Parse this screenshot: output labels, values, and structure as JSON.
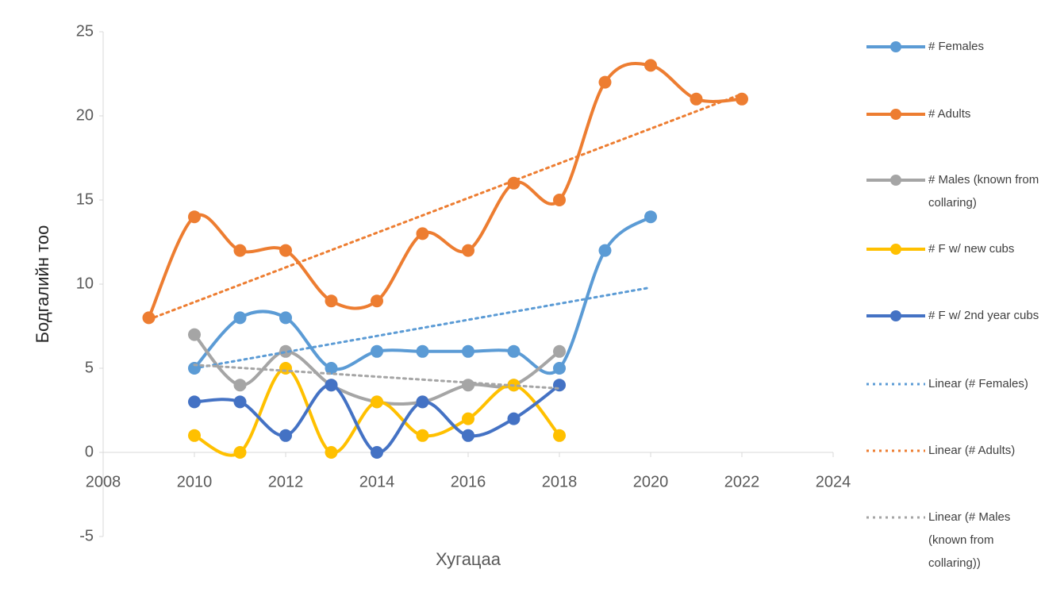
{
  "chart_data": {
    "type": "line",
    "smooth": true,
    "x_label": "Хугацаа",
    "y_label": "Бодгалийн тоо",
    "xlim": [
      2008,
      2024
    ],
    "xticks": [
      2008,
      2010,
      2012,
      2014,
      2016,
      2018,
      2020,
      2022,
      2024
    ],
    "ylim": [
      -5,
      25
    ],
    "yticks": [
      -5,
      0,
      5,
      10,
      15,
      20,
      25
    ],
    "series": [
      {
        "name": "# Females",
        "color": "#5b9bd5",
        "style": "solid",
        "x": [
          2010,
          2011,
          2012,
          2013,
          2014,
          2015,
          2016,
          2017,
          2018,
          2019,
          2020
        ],
        "values": [
          5,
          8,
          8,
          5,
          6,
          6,
          6,
          6,
          5,
          12,
          14
        ]
      },
      {
        "name": "# Adults",
        "color": "#ed7d31",
        "style": "solid",
        "x": [
          2009,
          2010,
          2011,
          2012,
          2013,
          2014,
          2015,
          2016,
          2017,
          2018,
          2019,
          2020,
          2021,
          2022
        ],
        "values": [
          8,
          14,
          12,
          12,
          9,
          9,
          13,
          12,
          16,
          15,
          22,
          23,
          21,
          21
        ]
      },
      {
        "name": "# Males (known from collaring)",
        "color": "#a5a5a5",
        "style": "solid",
        "x": [
          2010,
          2011,
          2012,
          2013,
          2014,
          2015,
          2016,
          2017,
          2018
        ],
        "values": [
          7,
          4,
          6,
          4,
          3,
          3,
          4,
          4,
          6
        ]
      },
      {
        "name": "# F w/ new cubs",
        "color": "#ffc000",
        "style": "solid",
        "x": [
          2010,
          2011,
          2012,
          2013,
          2014,
          2015,
          2016,
          2017,
          2018
        ],
        "values": [
          1,
          0,
          5,
          0,
          3,
          1,
          2,
          4,
          1
        ]
      },
      {
        "name": "# F w/ 2nd year cubs",
        "color": "#4472c4",
        "style": "solid",
        "x": [
          2010,
          2011,
          2012,
          2013,
          2014,
          2015,
          2016,
          2017,
          2018
        ],
        "values": [
          3,
          3,
          1,
          4,
          0,
          3,
          1,
          2,
          4
        ]
      },
      {
        "name": "Linear (# Females)",
        "color": "#5b9bd5",
        "style": "dotted",
        "x": [
          2010,
          2020
        ],
        "values": [
          5.0,
          9.8
        ]
      },
      {
        "name": "Linear (# Adults)",
        "color": "#ed7d31",
        "style": "dotted",
        "x": [
          2009,
          2022
        ],
        "values": [
          7.9,
          21.3
        ]
      },
      {
        "name": "Linear (# Males (known from collaring))",
        "color": "#a5a5a5",
        "style": "dotted",
        "x": [
          2010,
          2018
        ],
        "values": [
          5.2,
          3.8
        ]
      }
    ]
  }
}
